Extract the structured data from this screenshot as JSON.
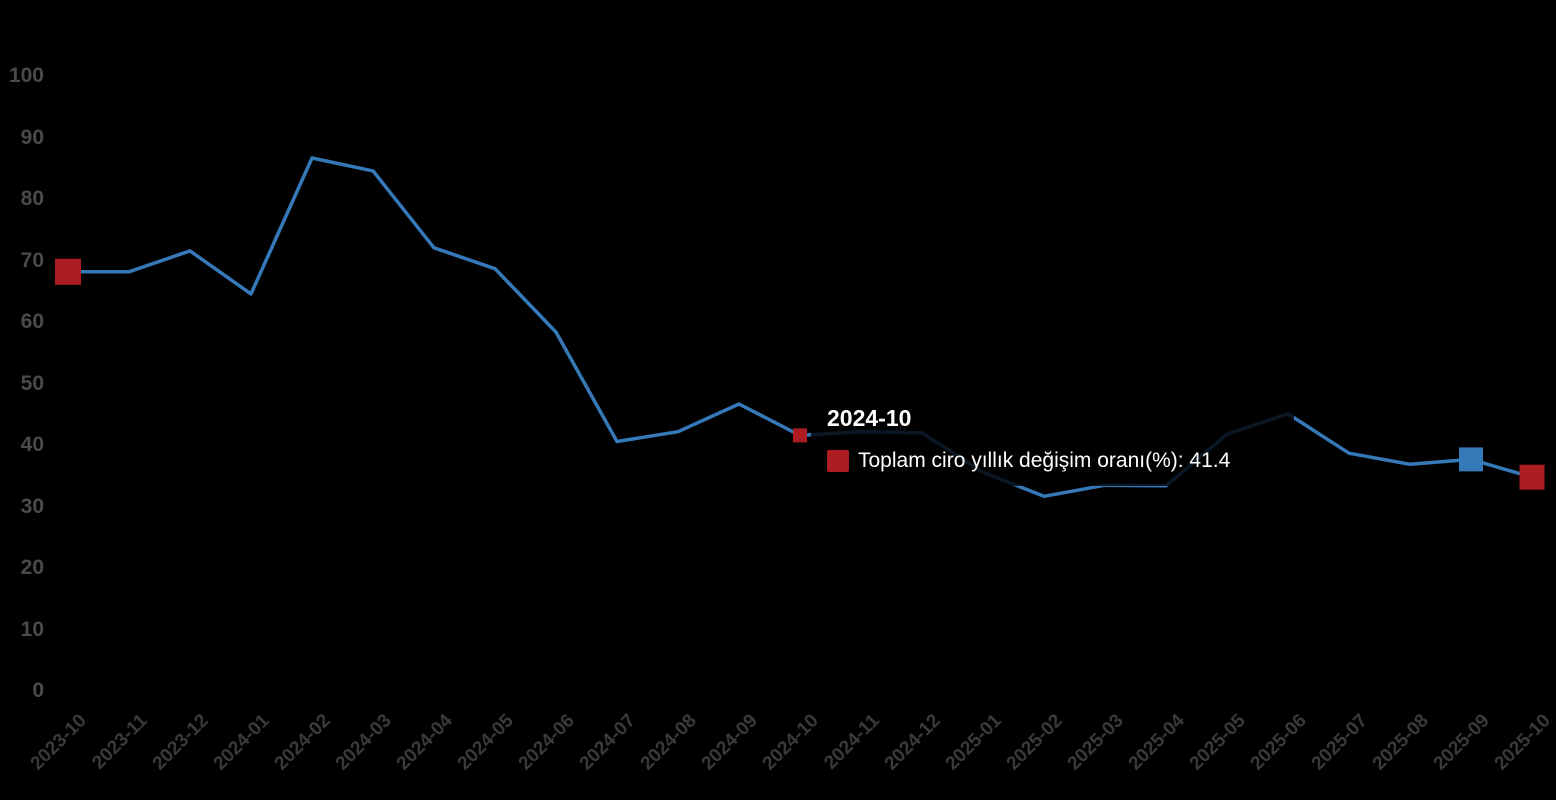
{
  "background": "#000000",
  "colors": {
    "line": "#3679b9",
    "red_marker": "#ad1c21",
    "blue_marker": "#3679b9",
    "y_axis_label": "#4a4a4a",
    "x_axis_label": "#3a3a3a",
    "tooltip_text": "#ffffff"
  },
  "tooltip": {
    "title": "2024-10",
    "series": "Toplam ciro yıllık değişim oranı(%)",
    "value": "41.4",
    "text": "Toplam ciro yıllık değişim oranı(%): 41.4"
  },
  "chart_data": {
    "type": "line",
    "title": "",
    "series_name": "Toplam ciro yıllık değişim oranı(%)",
    "categories": [
      "2023-10",
      "2023-11",
      "2023-12",
      "2024-01",
      "2024-02",
      "2024-03",
      "2024-04",
      "2024-05",
      "2024-06",
      "2024-07",
      "2024-08",
      "2024-09",
      "2024-10",
      "2024-11",
      "2024-12",
      "2025-01",
      "2025-02",
      "2025-03",
      "2025-04",
      "2025-05",
      "2025-06",
      "2025-07",
      "2025-08",
      "2025-09",
      "2025-10"
    ],
    "values": [
      68,
      68,
      71.4,
      64.4,
      86.5,
      84.4,
      71.9,
      68.5,
      58.2,
      40.4,
      42,
      46.5,
      41.4,
      42,
      41.8,
      35.4,
      31.5,
      33.3,
      33.2,
      41.6,
      44.9,
      38.5,
      36.7,
      37.5,
      34.6
    ],
    "yticks": [
      0,
      10,
      20,
      30,
      40,
      50,
      60,
      70,
      80,
      90,
      100
    ],
    "ylim": [
      0,
      100
    ],
    "grid": false,
    "legend_position": "none",
    "xlabel": "",
    "ylabel": "",
    "highlighted_point": {
      "category": "2024-10",
      "value": 41.4
    },
    "markers": [
      {
        "category": "2023-10",
        "index": 0,
        "color": "red",
        "size": 26
      },
      {
        "category": "2024-10",
        "index": 12,
        "color": "red",
        "size": 14
      },
      {
        "category": "2025-09",
        "index": 23,
        "color": "blue",
        "size": 24
      },
      {
        "category": "2025-10",
        "index": 24,
        "color": "red",
        "size": 25
      }
    ]
  }
}
